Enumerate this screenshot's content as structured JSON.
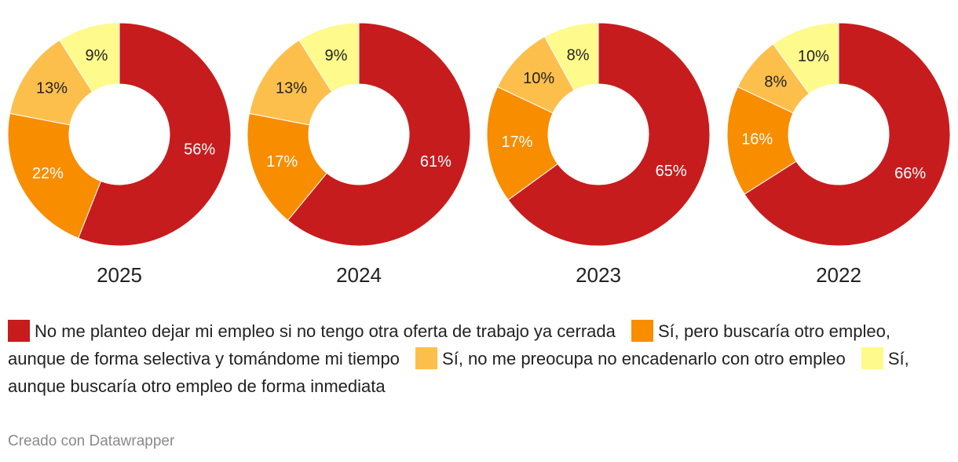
{
  "chart_data": {
    "type": "pie",
    "style": "donut",
    "series_colors": [
      "#c71c1d",
      "#f88d00",
      "#fdbf4c",
      "#fffa8c"
    ],
    "label_colors": [
      "#ffffff",
      "#ffffff",
      "#222222",
      "#222222"
    ],
    "legend": [
      "No me planteo dejar mi empleo si no tengo otra oferta de trabajo ya cerrada",
      "Sí, pero buscaría otro empleo, aunque de forma selectiva y tomándome mi tiempo",
      "Sí, no me preocupa no encadenarlo con otro empleo",
      "Sí, aunque buscaría otro empleo de forma inmediata"
    ],
    "legend_position": "bottom",
    "charts": [
      {
        "title": "2025",
        "values": [
          56,
          22,
          13,
          9
        ]
      },
      {
        "title": "2024",
        "values": [
          61,
          17,
          13,
          9
        ]
      },
      {
        "title": "2023",
        "values": [
          65,
          17,
          10,
          8
        ]
      },
      {
        "title": "2022",
        "values": [
          66,
          16,
          8,
          10
        ]
      }
    ]
  },
  "footer": {
    "credit": "Creado con Datawrapper"
  }
}
